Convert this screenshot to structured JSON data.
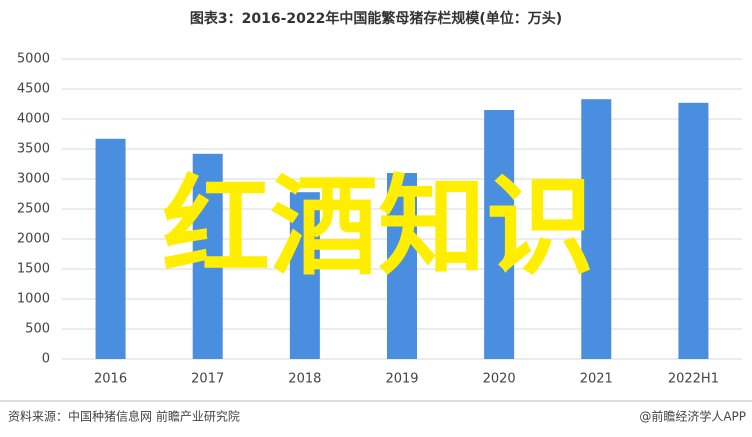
{
  "chart_data": {
    "type": "bar",
    "title": "图表3：2016-2022年中国能繁母猪存栏规模(单位：万头)",
    "categories": [
      "2016",
      "2017",
      "2018",
      "2019",
      "2020",
      "2021",
      "2022H1"
    ],
    "values": [
      3670,
      3420,
      2780,
      3100,
      4150,
      4330,
      4270
    ],
    "color": "#4a8ee0",
    "ylim": [
      0,
      5000
    ],
    "yticks": [
      0,
      500,
      1000,
      1500,
      2000,
      2500,
      3000,
      3500,
      4000,
      4500,
      5000
    ],
    "grid": true,
    "source": "资料来源：中国种猪信息网 前瞻产业研究院",
    "credit": "@前瞻经济学人APP",
    "overlay": "红酒知识"
  }
}
